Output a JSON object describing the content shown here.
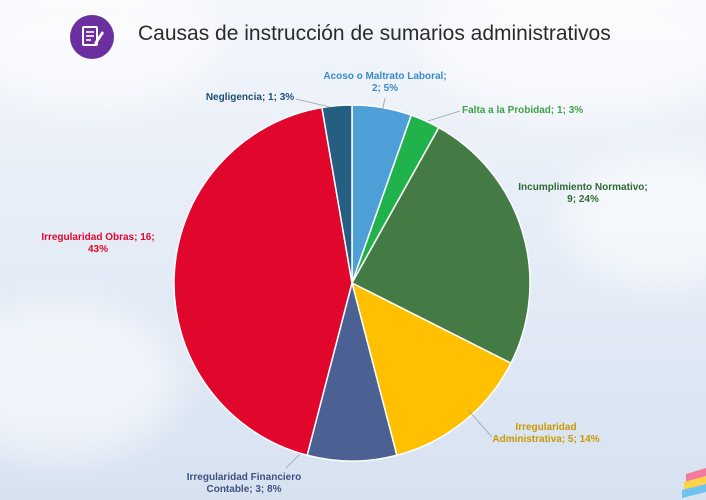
{
  "header": {
    "title": "Causas de instrucción de sumarios administrativos",
    "icon": "document-edit-icon",
    "icon_color": "#6b2fa0"
  },
  "chart_data": {
    "type": "pie",
    "title": "Causas de instrucción de sumarios administrativos",
    "start_angle_deg": 0,
    "direction": "clockwise",
    "slices": [
      {
        "label_lines": [
          "Acoso o Maltrato Laboral;",
          "2; 5%"
        ],
        "category": "Acoso o Maltrato Laboral",
        "value": 2,
        "percent": 5,
        "color": "#4e9fd8",
        "label_color": "#3a8cc9"
      },
      {
        "label_lines": [
          "Falta a la Probidad; 1; 3%"
        ],
        "category": "Falta a la Probidad",
        "value": 1,
        "percent": 3,
        "color": "#20b24b",
        "label_color": "#3ea34a"
      },
      {
        "label_lines": [
          "Incumplimiento Normativo;",
          "9; 24%"
        ],
        "category": "Incumplimiento Normativo",
        "value": 9,
        "percent": 24,
        "color": "#447b44",
        "label_color": "#2f6b32"
      },
      {
        "label_lines": [
          "Irregularidad",
          "Administrativa; 5; 14%"
        ],
        "category": "Irregularidad Administrativa",
        "value": 5,
        "percent": 14,
        "color": "#ffc000",
        "label_color": "#c99a00"
      },
      {
        "label_lines": [
          "Irregularidad Financiero",
          "Contable; 3; 8%"
        ],
        "category": "Irregularidad Financiero Contable",
        "value": 3,
        "percent": 8,
        "color": "#4b6194",
        "label_color": "#3c5283"
      },
      {
        "label_lines": [
          "Irregularidad Obras; 16;",
          "43%"
        ],
        "category": "Irregularidad Obras",
        "value": 16,
        "percent": 43,
        "color": "#e0062c",
        "label_color": "#e0062c"
      },
      {
        "label_lines": [
          "Negligencia; 1; 3%"
        ],
        "category": "Negligencia",
        "value": 1,
        "percent": 3,
        "color": "#255e80",
        "label_color": "#1f4e72"
      }
    ],
    "legend": "none",
    "data_labels": "outside-with-leaders"
  }
}
